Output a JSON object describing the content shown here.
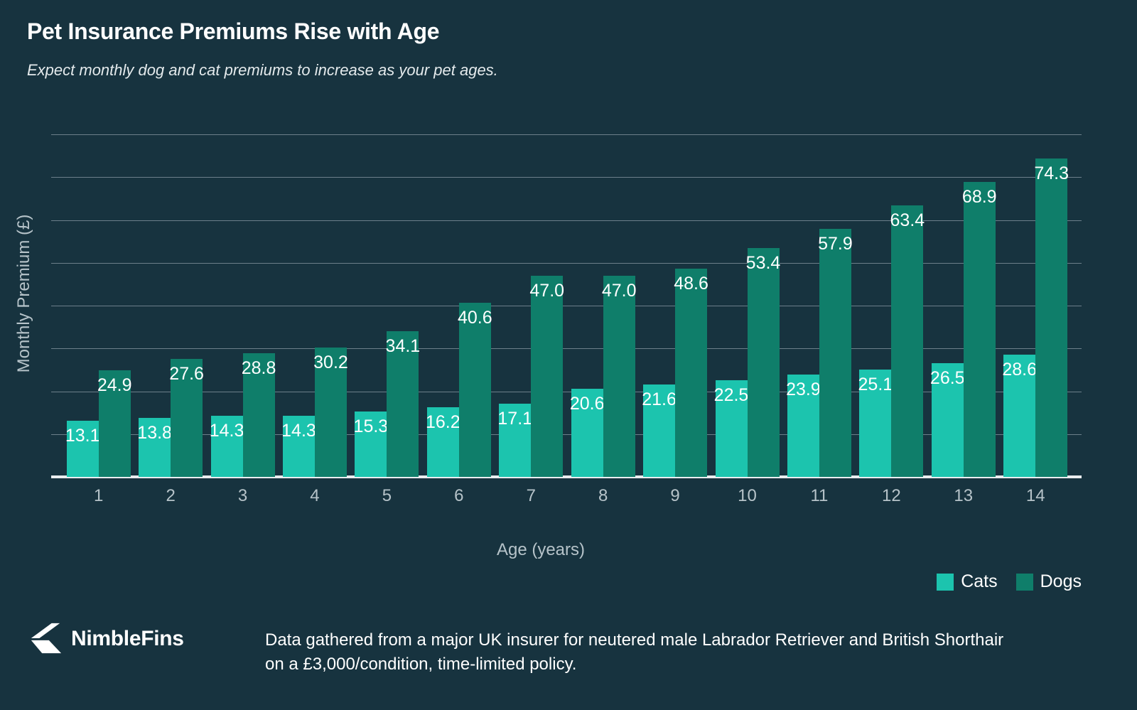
{
  "header": {
    "title": "Pet Insurance Premiums Rise with Age",
    "subtitle": "Expect monthly dog and cat premiums to increase as your pet ages."
  },
  "chart_data": {
    "type": "bar",
    "title": "Pet Insurance Premiums Rise with Age",
    "categories": [
      "1",
      "2",
      "3",
      "4",
      "5",
      "6",
      "7",
      "8",
      "9",
      "10",
      "11",
      "12",
      "13",
      "14"
    ],
    "series": [
      {
        "name": "Cats",
        "color": "#1CC4AE",
        "values": [
          13.1,
          13.8,
          14.3,
          14.3,
          15.3,
          16.2,
          17.1,
          20.6,
          21.6,
          22.5,
          23.9,
          25.1,
          26.5,
          28.6
        ]
      },
      {
        "name": "Dogs",
        "color": "#0F7E6A",
        "values": [
          24.9,
          27.6,
          28.8,
          30.2,
          34.1,
          40.6,
          47.0,
          47.0,
          48.6,
          53.4,
          57.9,
          63.4,
          68.9,
          74.3
        ]
      }
    ],
    "xlabel": "Age (years)",
    "ylabel": "Monthly Premium (£)",
    "ylim": [
      0,
      80
    ],
    "gridlines": "horizontal every 10, no y tick labels",
    "legend_position": "bottom-right",
    "value_labels": "one decimal, white, inside top of each bar"
  },
  "legend": {
    "items": [
      {
        "label": "Cats",
        "color": "#1CC4AE"
      },
      {
        "label": "Dogs",
        "color": "#0F7E6A"
      }
    ]
  },
  "footer": {
    "brand": "NimbleFins",
    "caption": "Data gathered from a major UK insurer for neutered male Labrador Retriever and British Shorthair\non a £3,000/condition, time-limited policy."
  },
  "colors": {
    "background": "#17333F",
    "cats": "#1CC4AE",
    "dogs": "#0F7E6A",
    "grid": "#8A9AA4",
    "axis_line": "#E9EDEF",
    "axis_text": "#B6C3C9",
    "label_text": "#FFFFFF"
  }
}
